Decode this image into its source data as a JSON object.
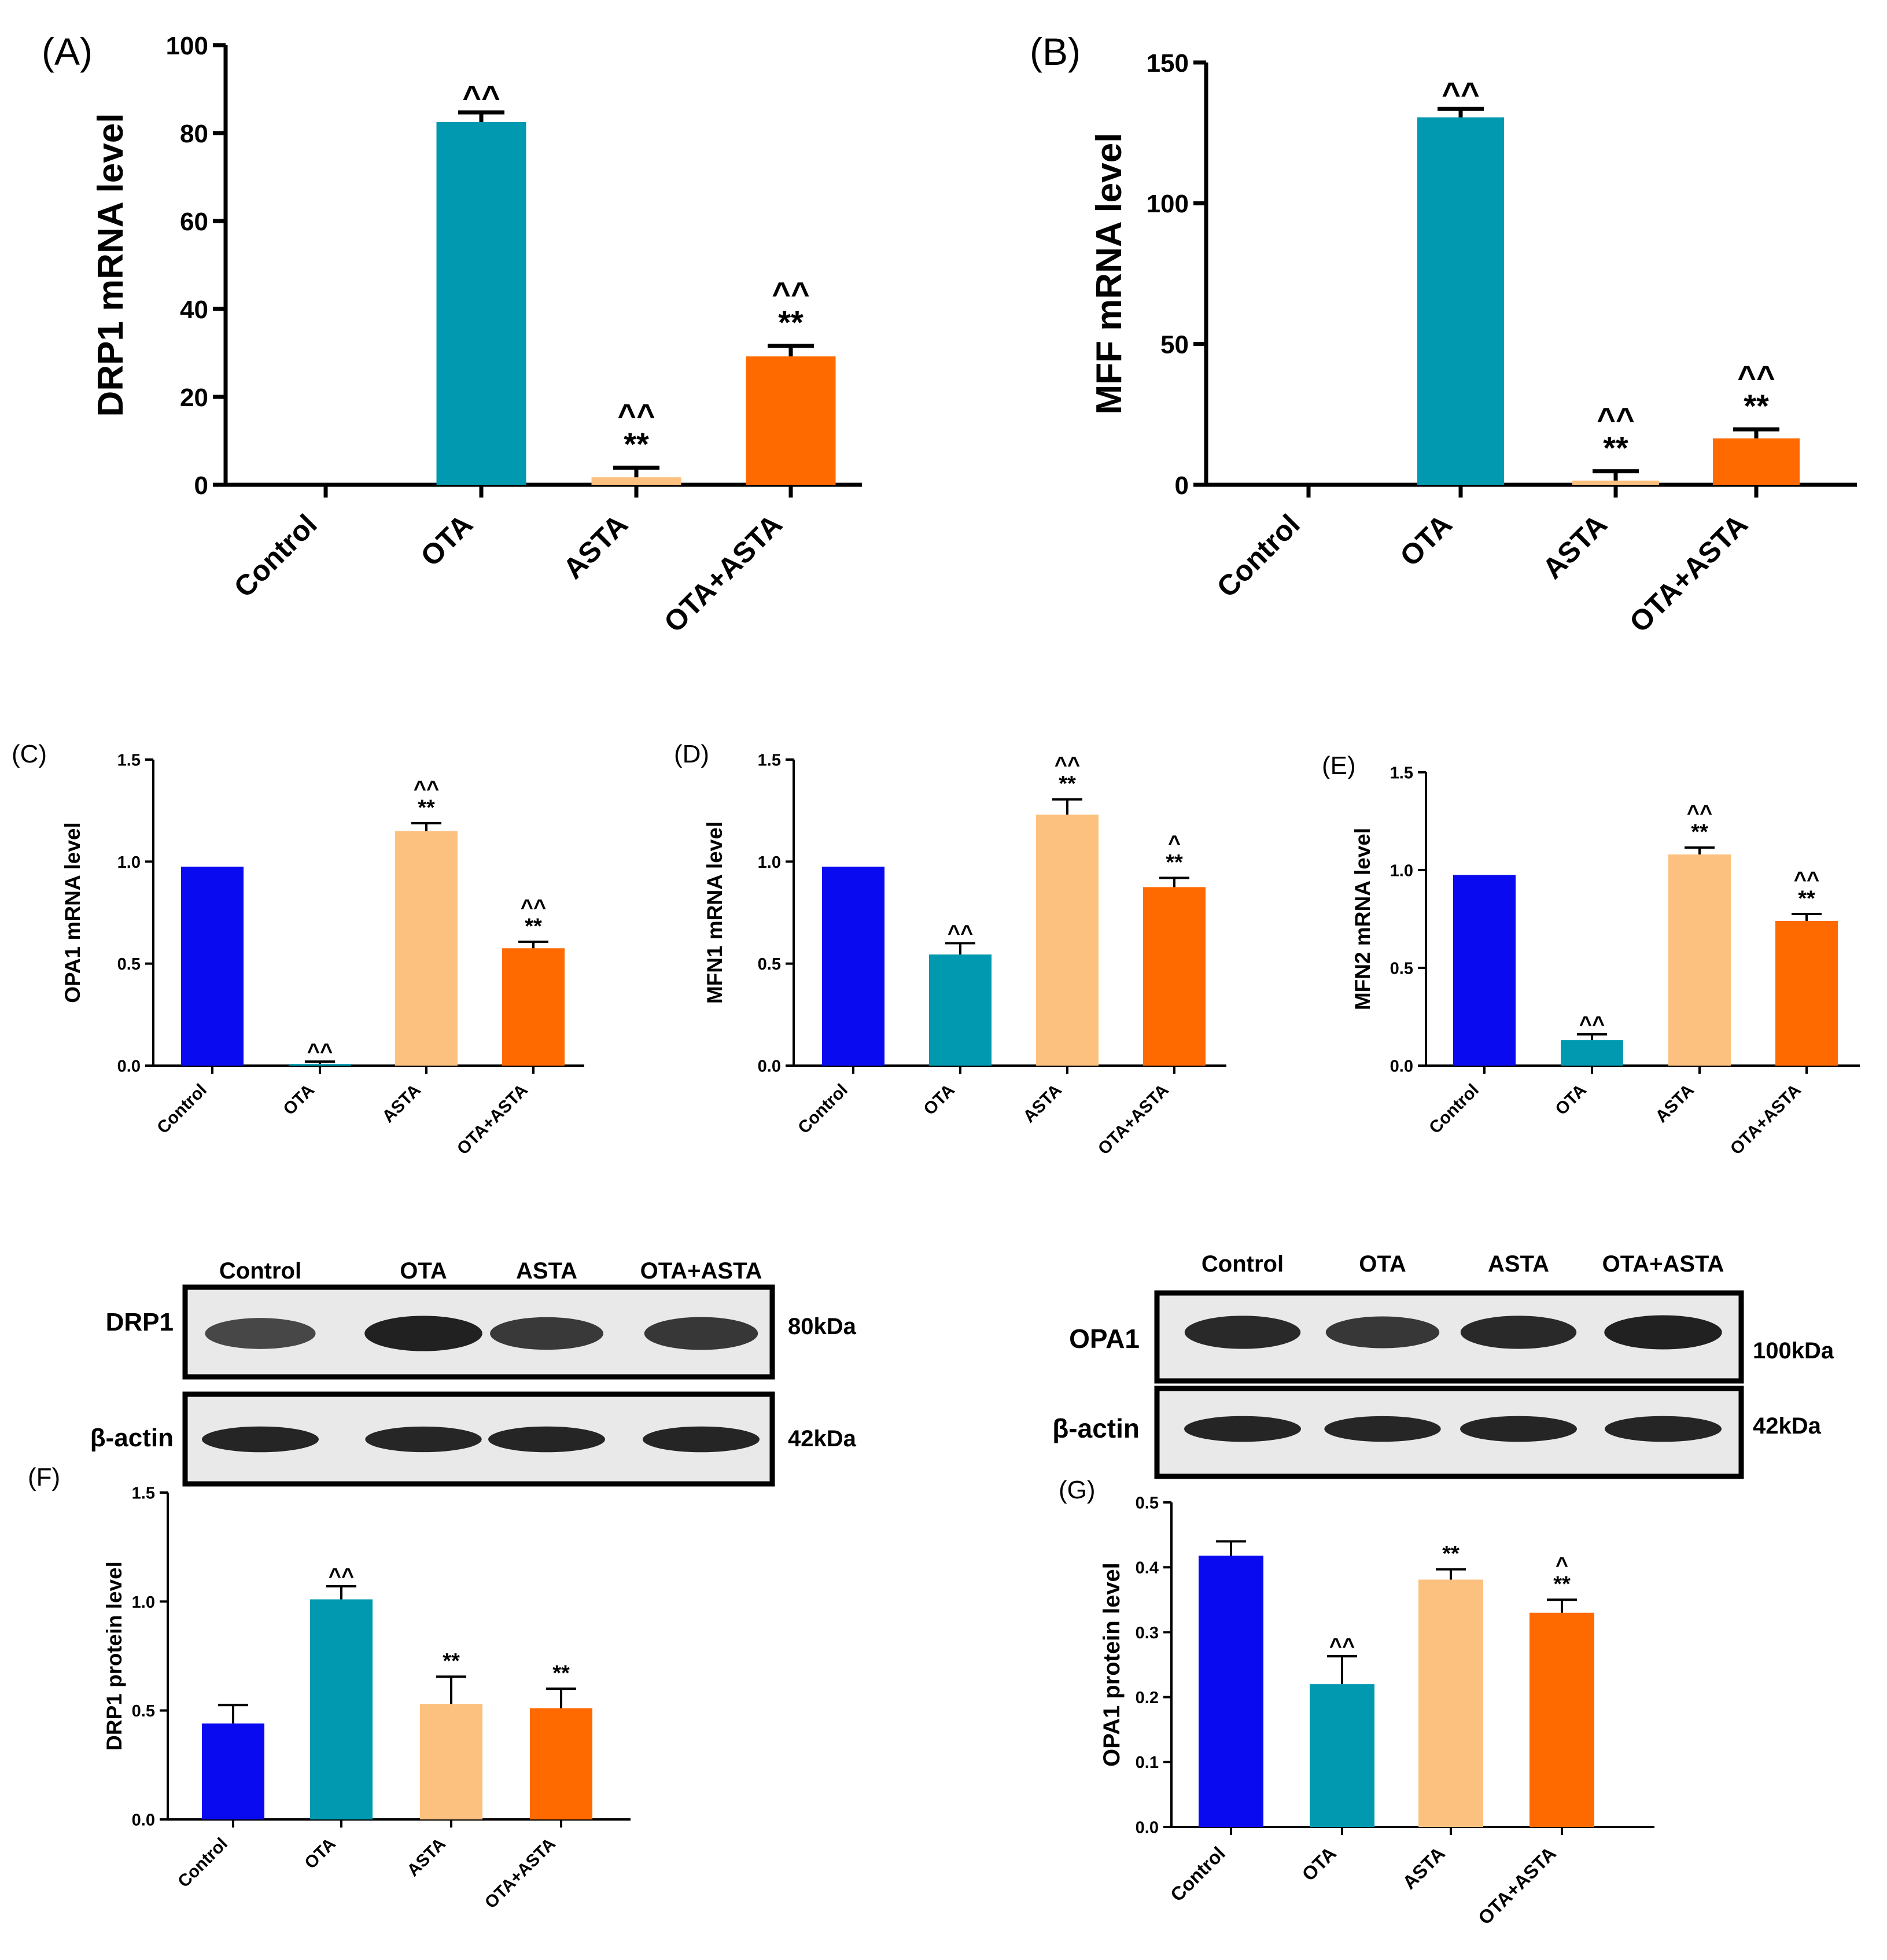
{
  "colors": {
    "control": "#0a0af0",
    "ota": "#0099b0",
    "asta": "#fcc17f",
    "otaasta": "#ff6a00",
    "axis": "#000000",
    "blot_band": "#1a1a1a",
    "blot_bg": "#e9e9e9"
  },
  "chart_data": [
    {
      "id": "A",
      "type": "bar",
      "panel_label": "(A)",
      "ylabel": "DRP1 mRNA level",
      "ylim": [
        0,
        100
      ],
      "yticks": [
        "0",
        "20",
        "40",
        "60",
        "80",
        "100"
      ],
      "categories": [
        "Control",
        "OTA",
        "ASTA",
        "OTA+ASTA"
      ],
      "values": [
        0,
        82.5,
        1.7,
        29.2
      ],
      "errors": [
        0,
        2.2,
        2.2,
        2.4
      ],
      "annotations": [
        [],
        [
          "^^"
        ],
        [
          "^^",
          "**"
        ],
        [
          "^^",
          "**"
        ]
      ]
    },
    {
      "id": "B",
      "type": "bar",
      "panel_label": "(B)",
      "ylabel": "MFF  mRNA level",
      "ylim": [
        0,
        150
      ],
      "yticks": [
        "0",
        "50",
        "100",
        "150"
      ],
      "categories": [
        "Control",
        "OTA",
        "ASTA",
        "OTA+ASTA"
      ],
      "values": [
        0,
        130.5,
        1.5,
        16.5
      ],
      "errors": [
        0,
        3.0,
        3.3,
        3.2
      ],
      "annotations": [
        [],
        [
          "^^"
        ],
        [
          "^^",
          "**"
        ],
        [
          "^^",
          "**"
        ]
      ]
    },
    {
      "id": "C",
      "type": "bar",
      "panel_label": "(C)",
      "ylabel": "OPA1 mRNA level",
      "ylim": [
        0,
        1.5
      ],
      "yticks": [
        "0.0",
        "0.5",
        "1.0",
        "1.5"
      ],
      "categories": [
        "Control",
        "OTA",
        "ASTA",
        "OTA+ASTA"
      ],
      "values": [
        0.975,
        0.008,
        1.15,
        0.575
      ],
      "errors": [
        0,
        0.012,
        0.038,
        0.032
      ],
      "annotations": [
        [],
        [
          "^^"
        ],
        [
          "^^",
          "**"
        ],
        [
          "^^",
          "**"
        ]
      ]
    },
    {
      "id": "D",
      "type": "bar",
      "panel_label": "(D)",
      "ylabel": "MFN1 mRNA level",
      "ylim": [
        0,
        1.5
      ],
      "yticks": [
        "0.0",
        "0.5",
        "1.0",
        "1.5"
      ],
      "categories": [
        "Control",
        "OTA",
        "ASTA",
        "OTA+ASTA"
      ],
      "values": [
        0.975,
        0.545,
        1.23,
        0.875
      ],
      "errors": [
        0,
        0.055,
        0.075,
        0.045
      ],
      "annotations": [
        [],
        [
          "^^"
        ],
        [
          "^^",
          "**"
        ],
        [
          "^",
          "**"
        ]
      ]
    },
    {
      "id": "E",
      "type": "bar",
      "panel_label": "(E)",
      "ylabel": "MFN2 mRNA level",
      "ylim": [
        0,
        1.5
      ],
      "yticks": [
        "0.0",
        "0.5",
        "1.0",
        "1.5"
      ],
      "categories": [
        "Control",
        "OTA",
        "ASTA",
        "OTA+ASTA"
      ],
      "values": [
        0.975,
        0.13,
        1.08,
        0.74
      ],
      "errors": [
        0,
        0.03,
        0.035,
        0.035
      ],
      "annotations": [
        [],
        [
          "^^"
        ],
        [
          "^^",
          "**"
        ],
        [
          "^^",
          "**"
        ]
      ]
    },
    {
      "id": "F",
      "type": "bar",
      "panel_label": "(F)",
      "ylabel": "DRP1 protein level",
      "ylim": [
        0,
        1.5
      ],
      "yticks": [
        "0.0",
        "0.5",
        "1.0",
        "1.5"
      ],
      "categories": [
        "Control",
        "OTA",
        "ASTA",
        "OTA+ASTA"
      ],
      "values": [
        0.44,
        1.01,
        0.53,
        0.51
      ],
      "errors": [
        0.085,
        0.06,
        0.125,
        0.09
      ],
      "annotations": [
        [],
        [
          "^^"
        ],
        [
          "**"
        ],
        [
          "**"
        ]
      ]
    },
    {
      "id": "G",
      "type": "bar",
      "panel_label": "(G)",
      "ylabel": "OPA1 protein level",
      "ylim": [
        0,
        0.5
      ],
      "yticks": [
        "0.0",
        "0.1",
        "0.2",
        "0.3",
        "0.4",
        "0.5"
      ],
      "categories": [
        "Control",
        "OTA",
        "ASTA",
        "OTA+ASTA"
      ],
      "values": [
        0.418,
        0.22,
        0.381,
        0.33
      ],
      "errors": [
        0.022,
        0.043,
        0.016,
        0.02
      ],
      "annotations": [
        [],
        [
          "^^"
        ],
        [
          "**"
        ],
        [
          "^",
          "**"
        ]
      ]
    }
  ],
  "blots": [
    {
      "id": "blot-drp1",
      "lanes": [
        "Control",
        "OTA",
        "ASTA",
        "OTA+ASTA"
      ],
      "target": {
        "label": "DRP1",
        "weight": "80kDa",
        "intensity": [
          0.55,
          0.95,
          0.7,
          0.72
        ]
      },
      "loading": {
        "label": "β-actin",
        "weight": "42kDa",
        "intensity": [
          0.9,
          0.88,
          0.9,
          0.9
        ]
      }
    },
    {
      "id": "blot-opa1",
      "lanes": [
        "Control",
        "OTA",
        "ASTA",
        "OTA+ASTA"
      ],
      "target": {
        "label": "OPA1",
        "weight": "100kDa",
        "intensity": [
          0.85,
          0.72,
          0.85,
          0.95
        ]
      },
      "loading": {
        "label": "β-actin",
        "weight": "42kDa",
        "intensity": [
          0.9,
          0.88,
          0.9,
          0.9
        ]
      }
    }
  ]
}
